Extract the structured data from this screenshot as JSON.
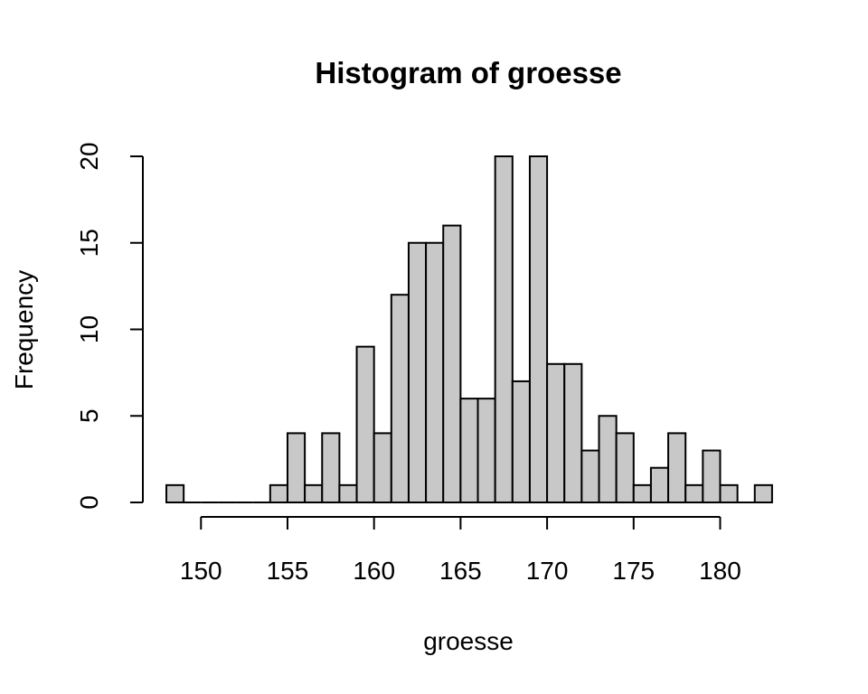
{
  "chart_data": {
    "type": "bar",
    "title": "Histogram of groesse",
    "xlabel": "groesse",
    "ylabel": "Frequency",
    "bin_width": 1,
    "bin_starts": [
      148,
      149,
      150,
      151,
      152,
      153,
      154,
      155,
      156,
      157,
      158,
      159,
      160,
      161,
      162,
      163,
      164,
      165,
      166,
      167,
      168,
      169,
      170,
      171,
      172,
      173,
      174,
      175,
      176,
      177,
      178,
      179,
      180,
      181,
      182
    ],
    "values": [
      1,
      0,
      0,
      0,
      0,
      0,
      1,
      4,
      1,
      4,
      1,
      9,
      4,
      12,
      15,
      15,
      16,
      6,
      6,
      20,
      7,
      20,
      8,
      8,
      3,
      5,
      4,
      1,
      2,
      4,
      1,
      3,
      1,
      0,
      1
    ],
    "xlim": [
      148,
      183
    ],
    "ylim": [
      0,
      20
    ],
    "x_ticks": [
      "150",
      "155",
      "160",
      "165",
      "170",
      "175",
      "180"
    ],
    "y_ticks": [
      "0",
      "5",
      "10",
      "15",
      "20"
    ],
    "bar_color": "#c8c8c8",
    "grid": false,
    "legend": false
  }
}
